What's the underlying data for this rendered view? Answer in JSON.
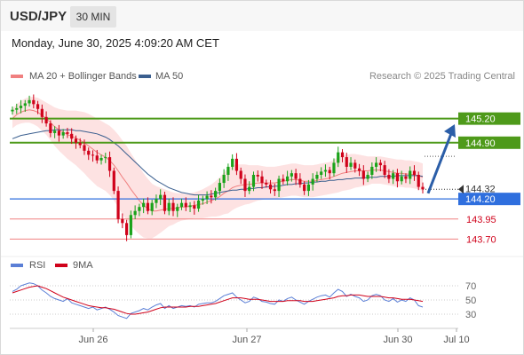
{
  "header": {
    "symbol": "USD/JPY",
    "timeframe": "30 MIN",
    "datetime": "Monday, June 30, 2025 4:09:20 AM CET"
  },
  "legend": {
    "ma20_label": "MA 20 + Bollinger Bands",
    "ma50_label": "MA 50",
    "credit": "Research © 2025 Trading Central",
    "rsi_label": "RSI",
    "rsi_ma_label": "9MA"
  },
  "colors": {
    "up_candle": "#1aa31a",
    "down_candle": "#d0021b",
    "bollinger_fill": "#fde2e2",
    "ma20": "#f08080",
    "ma50": "#3b5f8f",
    "resistance": "#4e9a1a",
    "pivot": "#2f6fde",
    "support": "#f08080",
    "support_text": "#d0021b",
    "arrow": "#2b5ea8",
    "rsi_line": "#5b7fd6",
    "rsi_ma": "#d0021b"
  },
  "chart_data": [
    {
      "type": "candlestick",
      "title": "",
      "x_labels": [
        "Jun 26",
        "Jun 27",
        "Jun 30",
        "Jul 10"
      ],
      "ylim": [
        143.55,
        145.45
      ],
      "last_price": "144.32",
      "levels": [
        {
          "value": 145.2,
          "label": "145.20",
          "kind": "resistance"
        },
        {
          "value": 144.9,
          "label": "144.90",
          "kind": "resistance"
        },
        {
          "value": 144.2,
          "label": "144.20",
          "kind": "pivot"
        },
        {
          "value": 143.95,
          "label": "143.95",
          "kind": "support"
        },
        {
          "value": 143.7,
          "label": "143.70",
          "kind": "support"
        }
      ],
      "arrow": {
        "from": 144.27,
        "to": 145.13,
        "direction": "up"
      },
      "close": [
        145.31,
        145.33,
        145.36,
        145.39,
        145.43,
        145.38,
        145.32,
        145.22,
        145.14,
        145.02,
        145.05,
        144.99,
        145.03,
        145.01,
        144.95,
        144.9,
        144.87,
        144.8,
        144.75,
        144.74,
        144.68,
        144.71,
        144.72,
        144.55,
        144.3,
        143.95,
        143.9,
        143.75,
        144.0,
        144.05,
        144.1,
        144.15,
        144.05,
        144.15,
        144.2,
        144.25,
        144.05,
        144.15,
        144.05,
        144.1,
        144.15,
        144.1,
        144.12,
        144.08,
        144.18,
        144.2,
        144.24,
        144.22,
        144.3,
        144.4,
        144.5,
        144.6,
        144.7,
        144.55,
        144.45,
        144.3,
        144.35,
        144.5,
        144.48,
        144.4,
        144.38,
        144.32,
        144.3,
        144.45,
        144.42,
        144.48,
        144.52,
        144.45,
        144.38,
        144.3,
        144.38,
        144.45,
        144.5,
        144.54,
        144.56,
        144.52,
        144.65,
        144.78,
        144.72,
        144.6,
        144.65,
        144.58,
        144.55,
        144.45,
        144.5,
        144.6,
        144.65,
        144.62,
        144.5,
        144.45,
        144.52,
        144.42,
        144.48,
        144.45,
        144.55,
        144.5,
        144.35,
        144.32
      ],
      "ma20": [
        145.2,
        145.25,
        145.28,
        145.3,
        145.31,
        145.3,
        145.28,
        145.24,
        145.2,
        145.15,
        145.1,
        145.06,
        145.03,
        145.0,
        144.98,
        144.96,
        144.93,
        144.9,
        144.86,
        144.82,
        144.78,
        144.75,
        144.72,
        144.68,
        144.62,
        144.55,
        144.47,
        144.4,
        144.32,
        144.25,
        144.18,
        144.12,
        144.08,
        144.05,
        144.05,
        144.06,
        144.07,
        144.08,
        144.08,
        144.09,
        144.1,
        144.1,
        144.11,
        144.12,
        144.13,
        144.14,
        144.16,
        144.18,
        144.2,
        144.23,
        144.27,
        144.3,
        144.34,
        144.36,
        144.37,
        144.38,
        144.38,
        144.39,
        144.4,
        144.4,
        144.4,
        144.4,
        144.4,
        144.41,
        144.42,
        144.43,
        144.44,
        144.44,
        144.43,
        144.42,
        144.42,
        144.42,
        144.43,
        144.44,
        144.45,
        144.46,
        144.48,
        144.5,
        144.52,
        144.53,
        144.54,
        144.55,
        144.55,
        144.55,
        144.55,
        144.56,
        144.56,
        144.56,
        144.55,
        144.54,
        144.53,
        144.52,
        144.52,
        144.51,
        144.51,
        144.5,
        144.49,
        144.47
      ],
      "ma50": [
        144.95,
        144.97,
        144.99,
        145.0,
        145.01,
        145.02,
        145.03,
        145.04,
        145.05,
        145.05,
        145.06,
        145.06,
        145.06,
        145.06,
        145.06,
        145.05,
        145.05,
        145.04,
        145.03,
        145.02,
        145.01,
        144.99,
        144.97,
        144.94,
        144.9,
        144.86,
        144.81,
        144.76,
        144.71,
        144.66,
        144.61,
        144.56,
        144.51,
        144.47,
        144.43,
        144.4,
        144.37,
        144.34,
        144.32,
        144.3,
        144.28,
        144.27,
        144.26,
        144.25,
        144.25,
        144.25,
        144.25,
        144.26,
        144.27,
        144.28,
        144.29,
        144.3,
        144.31,
        144.31,
        144.32,
        144.32,
        144.33,
        144.33,
        144.34,
        144.34,
        144.35,
        144.35,
        144.36,
        144.36,
        144.37,
        144.38,
        144.38,
        144.39,
        144.39,
        144.4,
        144.4,
        144.41,
        144.41,
        144.42,
        144.42,
        144.43,
        144.43,
        144.44,
        144.44,
        144.45,
        144.45,
        144.46,
        144.46,
        144.46,
        144.47,
        144.47,
        144.47,
        144.48,
        144.48,
        144.48,
        144.48,
        144.49,
        144.49,
        144.49,
        144.49,
        144.49,
        144.49,
        144.48
      ],
      "boll_width": [
        0.12,
        0.13,
        0.14,
        0.15,
        0.16,
        0.17,
        0.18,
        0.19,
        0.2,
        0.22,
        0.24,
        0.26,
        0.28,
        0.3,
        0.32,
        0.34,
        0.36,
        0.38,
        0.4,
        0.41,
        0.42,
        0.42,
        0.42,
        0.43,
        0.44,
        0.45,
        0.46,
        0.46,
        0.45,
        0.44,
        0.42,
        0.4,
        0.37,
        0.34,
        0.31,
        0.28,
        0.25,
        0.22,
        0.2,
        0.18,
        0.17,
        0.16,
        0.16,
        0.16,
        0.17,
        0.18,
        0.19,
        0.2,
        0.22,
        0.24,
        0.26,
        0.28,
        0.28,
        0.27,
        0.26,
        0.25,
        0.24,
        0.23,
        0.22,
        0.21,
        0.2,
        0.2,
        0.2,
        0.2,
        0.2,
        0.2,
        0.2,
        0.2,
        0.2,
        0.2,
        0.2,
        0.2,
        0.2,
        0.2,
        0.2,
        0.2,
        0.21,
        0.22,
        0.22,
        0.22,
        0.22,
        0.21,
        0.2,
        0.19,
        0.18,
        0.17,
        0.17,
        0.17,
        0.17,
        0.17,
        0.17,
        0.17,
        0.17,
        0.17,
        0.17,
        0.17,
        0.17,
        0.17
      ]
    },
    {
      "type": "line",
      "title": "RSI",
      "ylim": [
        20,
        80
      ],
      "y_ticks": [
        70,
        50,
        30
      ],
      "rsi": [
        62,
        65,
        70,
        72,
        74,
        73,
        70,
        64,
        60,
        55,
        52,
        50,
        48,
        52,
        46,
        44,
        42,
        40,
        38,
        40,
        36,
        38,
        40,
        37,
        33,
        28,
        26,
        24,
        31,
        33,
        35,
        38,
        36,
        40,
        43,
        45,
        38,
        42,
        38,
        40,
        42,
        41,
        42,
        40,
        44,
        45,
        46,
        46,
        48,
        52,
        56,
        58,
        60,
        54,
        50,
        46,
        48,
        54,
        52,
        48,
        47,
        45,
        44,
        50,
        48,
        52,
        54,
        50,
        47,
        44,
        48,
        51,
        54,
        56,
        57,
        54,
        60,
        65,
        62,
        55,
        58,
        55,
        53,
        48,
        50,
        56,
        58,
        56,
        50,
        48,
        52,
        47,
        50,
        48,
        53,
        50,
        42,
        40
      ],
      "rsi_ma": [
        60,
        62,
        64,
        66,
        68,
        69,
        70,
        68,
        66,
        63,
        60,
        57,
        54,
        52,
        50,
        48,
        46,
        44,
        42,
        41,
        40,
        39,
        39,
        38,
        37,
        35,
        33,
        31,
        30,
        30,
        31,
        32,
        33,
        35,
        37,
        39,
        40,
        40,
        40,
        40,
        40,
        40,
        41,
        41,
        41,
        42,
        43,
        44,
        45,
        47,
        49,
        51,
        53,
        53,
        53,
        52,
        51,
        51,
        51,
        50,
        49,
        48,
        48,
        48,
        48,
        49,
        49,
        49,
        49,
        48,
        48,
        48,
        49,
        50,
        51,
        52,
        53,
        55,
        56,
        56,
        57,
        57,
        57,
        56,
        55,
        55,
        55,
        55,
        54,
        53,
        53,
        52,
        51,
        51,
        51,
        50,
        49,
        48
      ]
    }
  ]
}
